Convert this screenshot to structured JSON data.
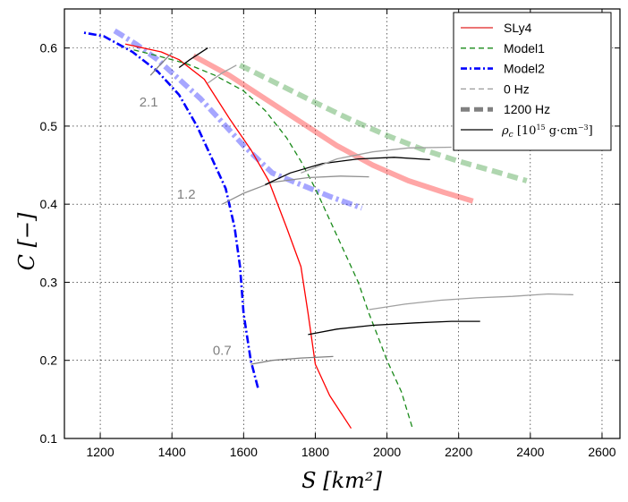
{
  "chart_data": {
    "type": "line",
    "title": "",
    "xlabel": "S [km²]",
    "ylabel": "C [−]",
    "xlim": [
      1100,
      2650
    ],
    "ylim": [
      0.1,
      0.65
    ],
    "xticks": [
      1200,
      1400,
      1600,
      1800,
      2000,
      2200,
      2400,
      2600
    ],
    "yticks": [
      0.1,
      0.2,
      0.3,
      0.4,
      0.5,
      0.6
    ],
    "grid": true,
    "legend_position": "top-right",
    "legend": [
      {
        "label": "SLy4",
        "style": "solid",
        "color": "#e02020"
      },
      {
        "label": "Model1",
        "style": "dashed",
        "color": "#1a8a1a"
      },
      {
        "label": "Model2",
        "style": "dashdot",
        "color": "#0000ff"
      },
      {
        "label": "0 Hz",
        "style": "dashed",
        "color": "#999999"
      },
      {
        "label": "1200 Hz",
        "style": "thick-dashed",
        "color": "#808080"
      },
      {
        "label": "ρ_c [10^15 g·cm^-3]",
        "style": "solid",
        "color": "#000000"
      }
    ],
    "legend_math": {
      "rho": "ρ",
      "sub_c": "c",
      "open": "[10",
      "exp": "15",
      "unit": " g·cm",
      "neg": "−3",
      "close": "]"
    },
    "series": [
      {
        "name": "SLy4",
        "role": "0 Hz",
        "color": "#ff0000",
        "style": "solid",
        "points": [
          [
            1900,
            0.113
          ],
          [
            1840,
            0.155
          ],
          [
            1800,
            0.195
          ],
          [
            1780,
            0.26
          ],
          [
            1760,
            0.32
          ],
          [
            1720,
            0.37
          ],
          [
            1670,
            0.43
          ],
          [
            1620,
            0.47
          ],
          [
            1560,
            0.51
          ],
          [
            1490,
            0.56
          ],
          [
            1420,
            0.585
          ],
          [
            1370,
            0.595
          ],
          [
            1320,
            0.6
          ],
          [
            1270,
            0.605
          ]
        ]
      },
      {
        "name": "Model1",
        "role": "0 Hz",
        "color": "#1a8a1a",
        "style": "dashed",
        "points": [
          [
            2070,
            0.115
          ],
          [
            2040,
            0.16
          ],
          [
            2000,
            0.2
          ],
          [
            1975,
            0.23
          ],
          [
            1950,
            0.26
          ],
          [
            1920,
            0.3
          ],
          [
            1880,
            0.34
          ],
          [
            1840,
            0.38
          ],
          [
            1800,
            0.42
          ],
          [
            1760,
            0.455
          ],
          [
            1720,
            0.485
          ],
          [
            1660,
            0.52
          ],
          [
            1600,
            0.545
          ],
          [
            1520,
            0.565
          ],
          [
            1440,
            0.58
          ],
          [
            1360,
            0.59
          ],
          [
            1290,
            0.598
          ]
        ]
      },
      {
        "name": "Model2",
        "role": "0 Hz",
        "color": "#0000ff",
        "style": "dashdot",
        "points": [
          [
            1640,
            0.165
          ],
          [
            1620,
            0.2
          ],
          [
            1600,
            0.26
          ],
          [
            1590,
            0.32
          ],
          [
            1575,
            0.37
          ],
          [
            1550,
            0.42
          ],
          [
            1510,
            0.46
          ],
          [
            1470,
            0.5
          ],
          [
            1420,
            0.54
          ],
          [
            1360,
            0.57
          ],
          [
            1290,
            0.595
          ],
          [
            1210,
            0.615
          ],
          [
            1150,
            0.62
          ]
        ]
      },
      {
        "name": "SLy4",
        "role": "1200 Hz",
        "color": "#ff0000",
        "style": "thick",
        "points": [
          [
            1460,
            0.59
          ],
          [
            1560,
            0.565
          ],
          [
            1660,
            0.535
          ],
          [
            1760,
            0.505
          ],
          [
            1860,
            0.475
          ],
          [
            1960,
            0.45
          ],
          [
            2060,
            0.43
          ],
          [
            2160,
            0.415
          ],
          [
            2240,
            0.404
          ]
        ]
      },
      {
        "name": "Model1",
        "role": "1200 Hz",
        "color": "#1a8a1a",
        "style": "thick-dashed",
        "points": [
          [
            1590,
            0.578
          ],
          [
            1700,
            0.553
          ],
          [
            1800,
            0.53
          ],
          [
            1900,
            0.508
          ],
          [
            2000,
            0.488
          ],
          [
            2100,
            0.47
          ],
          [
            2200,
            0.455
          ],
          [
            2300,
            0.442
          ],
          [
            2390,
            0.43
          ]
        ]
      },
      {
        "name": "Model2",
        "role": "1200 Hz",
        "color": "#0000ff",
        "style": "thick-dashdot",
        "points": [
          [
            1240,
            0.622
          ],
          [
            1300,
            0.605
          ],
          [
            1360,
            0.585
          ],
          [
            1420,
            0.56
          ],
          [
            1480,
            0.535
          ],
          [
            1540,
            0.505
          ],
          [
            1600,
            0.475
          ],
          [
            1680,
            0.44
          ],
          [
            1760,
            0.425
          ],
          [
            1840,
            0.41
          ],
          [
            1930,
            0.395
          ]
        ]
      }
    ],
    "density_lines": [
      {
        "rho": "2.1",
        "color": "#808080",
        "points": [
          [
            1340,
            0.565
          ],
          [
            1370,
            0.58
          ],
          [
            1400,
            0.594
          ]
        ]
      },
      {
        "rho": "2.1",
        "color": "#000000",
        "points": [
          [
            1420,
            0.575
          ],
          [
            1450,
            0.585
          ],
          [
            1500,
            0.6
          ]
        ]
      },
      {
        "rho": "2.1",
        "color": "#a0a0a0",
        "points": [
          [
            1500,
            0.555
          ],
          [
            1540,
            0.568
          ],
          [
            1580,
            0.578
          ]
        ]
      },
      {
        "rho": "1.2",
        "color": "#909090",
        "points": [
          [
            1540,
            0.4
          ],
          [
            1600,
            0.414
          ],
          [
            1680,
            0.428
          ],
          [
            1780,
            0.434
          ],
          [
            1870,
            0.436
          ],
          [
            1950,
            0.435
          ]
        ]
      },
      {
        "rho": "1.2",
        "color": "#000000",
        "points": [
          [
            1660,
            0.425
          ],
          [
            1730,
            0.44
          ],
          [
            1820,
            0.452
          ],
          [
            1920,
            0.458
          ],
          [
            2020,
            0.46
          ],
          [
            2120,
            0.457
          ]
        ]
      },
      {
        "rho": "1.2",
        "color": "#a0a0a0",
        "points": [
          [
            1760,
            0.44
          ],
          [
            1860,
            0.458
          ],
          [
            1960,
            0.467
          ],
          [
            2060,
            0.472
          ],
          [
            2180,
            0.473
          ]
        ]
      },
      {
        "rho": "0.7",
        "color": "#808080",
        "points": [
          [
            1620,
            0.195
          ],
          [
            1680,
            0.2
          ],
          [
            1760,
            0.203
          ],
          [
            1850,
            0.205
          ]
        ]
      },
      {
        "rho": "0.7",
        "color": "#000000",
        "points": [
          [
            1780,
            0.233
          ],
          [
            1860,
            0.24
          ],
          [
            1960,
            0.245
          ],
          [
            2080,
            0.248
          ],
          [
            2180,
            0.25
          ],
          [
            2260,
            0.25
          ]
        ]
      },
      {
        "rho": "0.7",
        "color": "#a0a0a0",
        "points": [
          [
            1950,
            0.265
          ],
          [
            2050,
            0.272
          ],
          [
            2150,
            0.277
          ],
          [
            2250,
            0.28
          ],
          [
            2350,
            0.282
          ],
          [
            2450,
            0.285
          ],
          [
            2520,
            0.284
          ]
        ]
      }
    ],
    "annotations": [
      {
        "text": "2.1",
        "x": 1335,
        "y": 0.525
      },
      {
        "text": "1.2",
        "x": 1440,
        "y": 0.407
      },
      {
        "text": "0.7",
        "x": 1540,
        "y": 0.207
      }
    ]
  }
}
